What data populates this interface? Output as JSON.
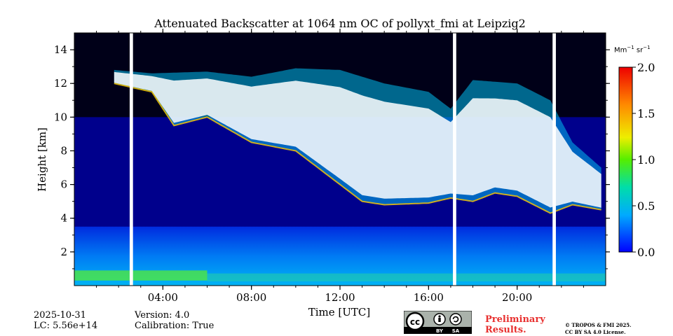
{
  "chart_data": {
    "type": "heatmap",
    "title": "Attenuated Backscatter at 1064 nm OC of pollyxt_fmi at Leipzig2",
    "xlabel": "Time [UTC]",
    "ylabel": "Height [km]",
    "x_range_hours": [
      0,
      24
    ],
    "xlim_hours": [
      0,
      24
    ],
    "ylim_km": [
      0,
      15
    ],
    "x_tick_labels": [
      "04:00",
      "08:00",
      "12:00",
      "16:00",
      "20:00"
    ],
    "x_tick_hours": [
      4,
      8,
      12,
      16,
      20
    ],
    "y_ticks": [
      2,
      4,
      6,
      8,
      10,
      12,
      14
    ],
    "colorbar": {
      "units_prefix": "Mm",
      "units_exp1": "−1",
      "units_mid": "sr",
      "units_exp2": "−1",
      "range": [
        0.0,
        2.0
      ],
      "ticks": [
        "0.0",
        "0.5",
        "1.0",
        "1.5",
        "2.0"
      ],
      "tick_values": [
        0.0,
        0.5,
        1.0,
        1.5,
        2.0
      ],
      "colormap": "jet-like"
    },
    "data_gaps_hours": [
      [
        2.5,
        2.65
      ],
      [
        17.1,
        17.25
      ],
      [
        21.6,
        21.75
      ]
    ],
    "features": {
      "boundary_layer_top_km": 0.9,
      "cloud_base_km": [
        [
          1.8,
          12.0
        ],
        [
          3.5,
          11.5
        ],
        [
          4.5,
          9.5
        ],
        [
          6.0,
          10.0
        ],
        [
          8.0,
          8.5
        ],
        [
          10.0,
          8.0
        ],
        [
          11.0,
          7.0
        ],
        [
          12.0,
          6.0
        ],
        [
          13.0,
          5.0
        ],
        [
          14.0,
          4.8
        ],
        [
          16.0,
          4.9
        ],
        [
          17.0,
          5.2
        ],
        [
          18.0,
          5.0
        ],
        [
          19.0,
          5.5
        ],
        [
          20.0,
          5.3
        ],
        [
          21.5,
          4.3
        ],
        [
          22.5,
          4.8
        ],
        [
          23.8,
          4.5
        ]
      ],
      "cloud_top_km": [
        [
          1.8,
          12.8
        ],
        [
          3.5,
          12.6
        ],
        [
          6.0,
          12.7
        ],
        [
          8.0,
          12.4
        ],
        [
          10.0,
          12.9
        ],
        [
          12.0,
          12.8
        ],
        [
          14.0,
          12.0
        ],
        [
          16.0,
          11.5
        ],
        [
          17.0,
          10.5
        ],
        [
          18.0,
          12.2
        ],
        [
          20.0,
          12.0
        ],
        [
          21.5,
          11.0
        ],
        [
          22.5,
          8.5
        ],
        [
          23.8,
          7.0
        ]
      ]
    }
  },
  "footer": {
    "date": "2025-10-31",
    "lc": "LC: 5.56e+14",
    "version": "Version: 4.0",
    "calibration": "Calibration: True",
    "preliminary_line1": "Preliminary",
    "preliminary_line2": "Results.",
    "copyright_line1": "© TROPOS & FMI 2025.",
    "copyright_line2": "CC BY SA 4.0 License.",
    "cc_label": "cc",
    "cc_by": "BY",
    "cc_sa": "SA"
  },
  "colors": {
    "background": "#00008c",
    "gap": "#ffffff",
    "cloud": "#ffffff",
    "preliminary": "#e8302f"
  }
}
